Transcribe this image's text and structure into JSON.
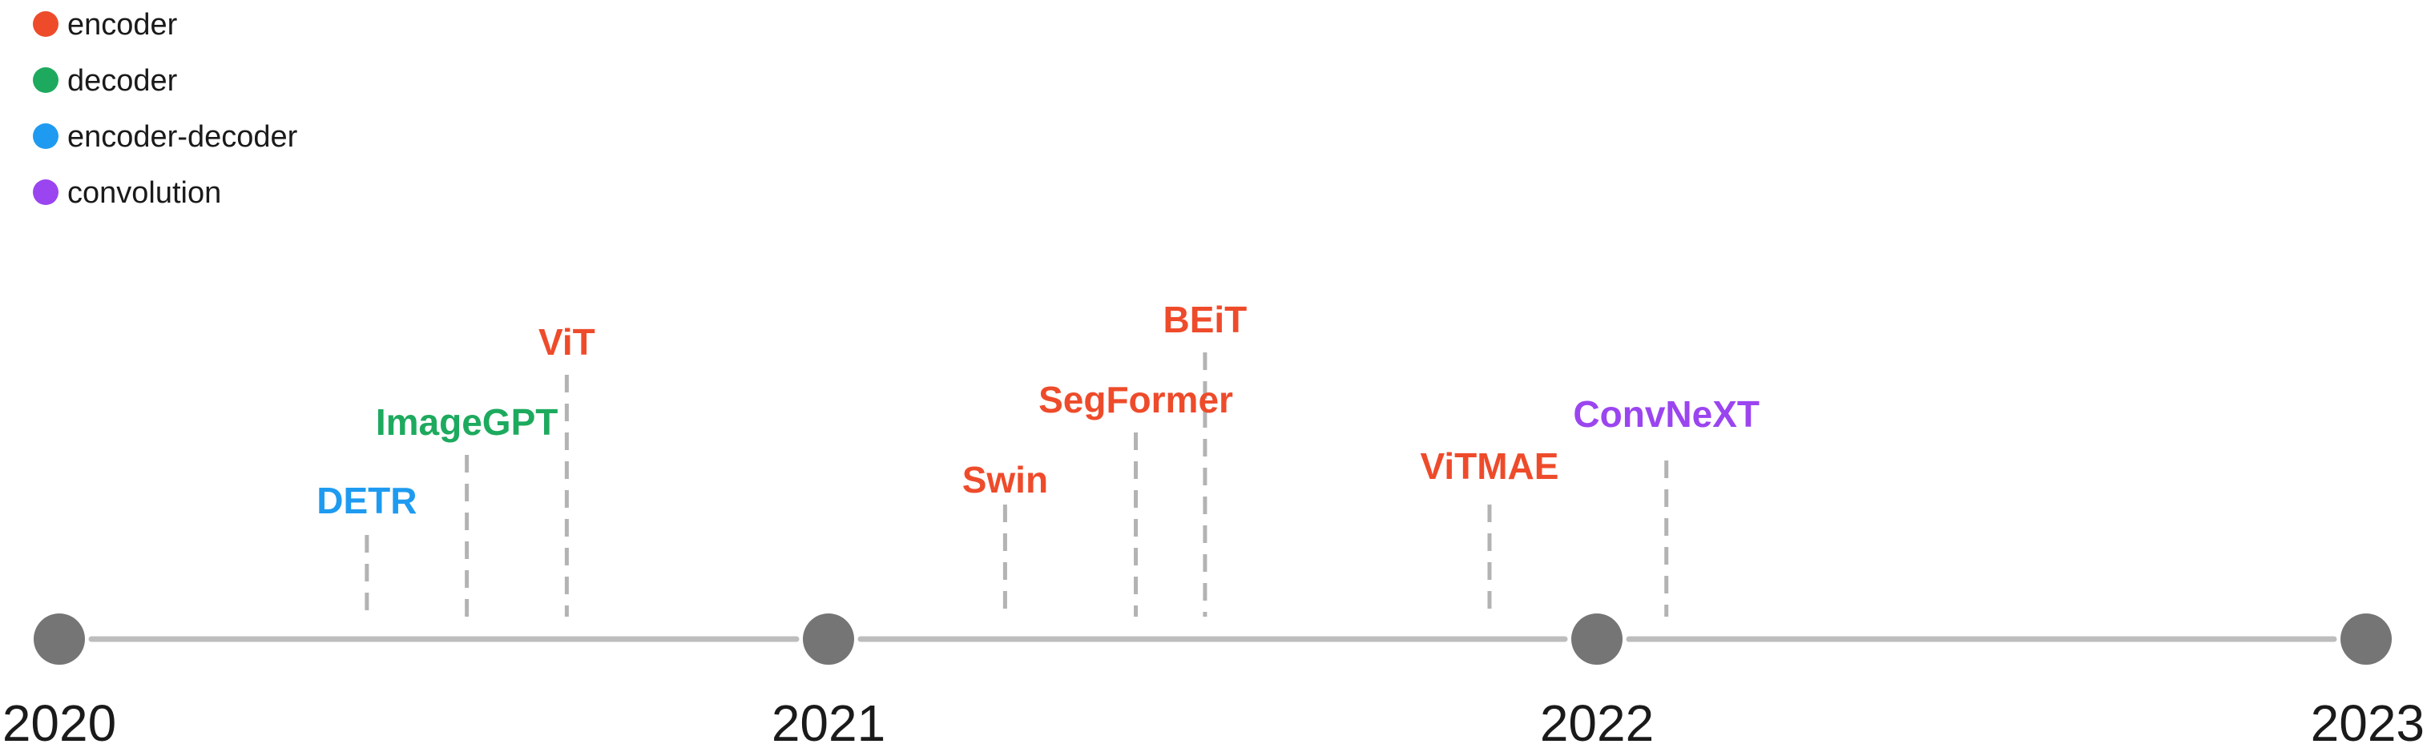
{
  "colors": {
    "encoder": "#EE4B2B",
    "decoder": "#1DAA5E",
    "encoder-decoder": "#1E9BF0",
    "convolution": "#9B45F0",
    "timeline": "#BDBDBD",
    "year_dot": "#757575",
    "stem": "#B3B3B3"
  },
  "legend": [
    {
      "key": "encoder",
      "label": "encoder"
    },
    {
      "key": "decoder",
      "label": "decoder"
    },
    {
      "key": "encoder-decoder",
      "label": "encoder-decoder"
    },
    {
      "key": "convolution",
      "label": "convolution"
    }
  ],
  "years": [
    "2020",
    "2021",
    "2022",
    "2023"
  ],
  "models": [
    {
      "name": "DETR",
      "type": "encoder-decoder",
      "date": 2020.4,
      "level": 1
    },
    {
      "name": "ImageGPT",
      "type": "decoder",
      "date": 2020.53,
      "level": 2
    },
    {
      "name": "ViT",
      "type": "encoder",
      "date": 2020.66,
      "level": 3
    },
    {
      "name": "Swin",
      "type": "encoder",
      "date": 2021.23,
      "level": 1
    },
    {
      "name": "SegFormer",
      "type": "encoder",
      "date": 2021.4,
      "level": 2
    },
    {
      "name": "BEiT",
      "type": "encoder",
      "date": 2021.49,
      "level": 3
    },
    {
      "name": "ViTMAE",
      "type": "encoder",
      "date": 2021.86,
      "level": 1
    },
    {
      "name": "ConvNeXT",
      "type": "convolution",
      "date": 2022.09,
      "level": 2
    }
  ]
}
